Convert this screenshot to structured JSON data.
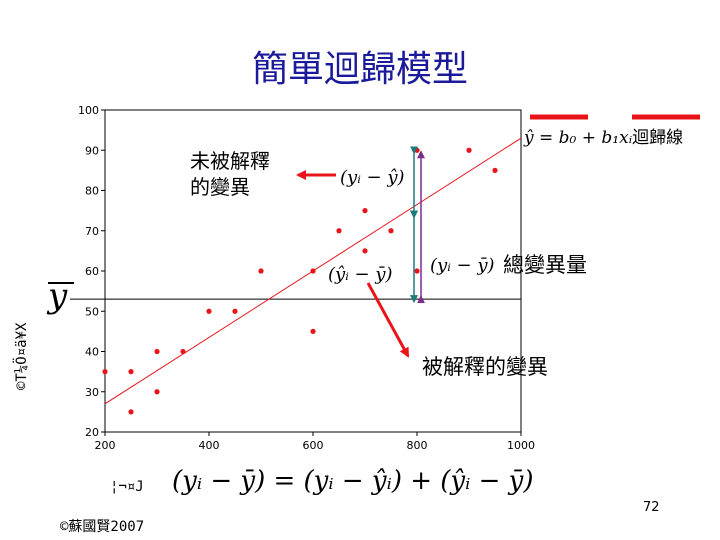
{
  "slide": {
    "title": "簡單迴歸模型",
    "copyright": "©蘇國賢2007",
    "page_number": "72",
    "ybar_label": "y",
    "garbled_ylabel": "©T¼Ö¤ä¥X",
    "garbled_xlabel": "¦¬¤J"
  },
  "annotations": {
    "unexplained": [
      "未被解釋",
      "的變異"
    ],
    "total": "總變異量",
    "explained": "被解釋的變異",
    "regression_line": "迴歸線",
    "f_unexplained": "(yᵢ − ŷ)",
    "f_total": "(yᵢ − ȳ)",
    "f_explained": "(ŷᵢ − ȳ)",
    "f_regression": "ŷ = b₀ + b₁xᵢ",
    "f_main": "(yᵢ − ȳ) = (yᵢ − ŷᵢ) + (ŷᵢ − ȳ)"
  },
  "colors": {
    "points": "#e8141a",
    "regression": "#e8141a",
    "arrow": "#e8141a",
    "title": "#1a1a9a",
    "arrow_purple": "#7b2d8e",
    "arrow_teal": "#1e7a7a",
    "legend_bar": "#e8141a"
  },
  "chart_data": {
    "type": "scatter",
    "title": "",
    "xlabel": "",
    "ylabel": "",
    "xlim": [
      200,
      1000
    ],
    "ylim": [
      20,
      100
    ],
    "x_ticks": [
      200,
      400,
      600,
      800,
      1000
    ],
    "y_ticks": [
      20,
      30,
      40,
      50,
      60,
      70,
      80,
      90,
      100
    ],
    "points": [
      {
        "x": 200,
        "y": 35
      },
      {
        "x": 250,
        "y": 35
      },
      {
        "x": 250,
        "y": 25
      },
      {
        "x": 300,
        "y": 40
      },
      {
        "x": 300,
        "y": 30
      },
      {
        "x": 350,
        "y": 40
      },
      {
        "x": 400,
        "y": 50
      },
      {
        "x": 450,
        "y": 50
      },
      {
        "x": 500,
        "y": 60
      },
      {
        "x": 600,
        "y": 60
      },
      {
        "x": 600,
        "y": 45
      },
      {
        "x": 650,
        "y": 70
      },
      {
        "x": 700,
        "y": 65
      },
      {
        "x": 700,
        "y": 75
      },
      {
        "x": 750,
        "y": 70
      },
      {
        "x": 800,
        "y": 90
      },
      {
        "x": 800,
        "y": 60
      },
      {
        "x": 900,
        "y": 90
      },
      {
        "x": 950,
        "y": 85
      }
    ],
    "regression_line": [
      {
        "x": 200,
        "y": 27
      },
      {
        "x": 1000,
        "y": 93
      }
    ],
    "mean_y": 53,
    "grid": false
  }
}
